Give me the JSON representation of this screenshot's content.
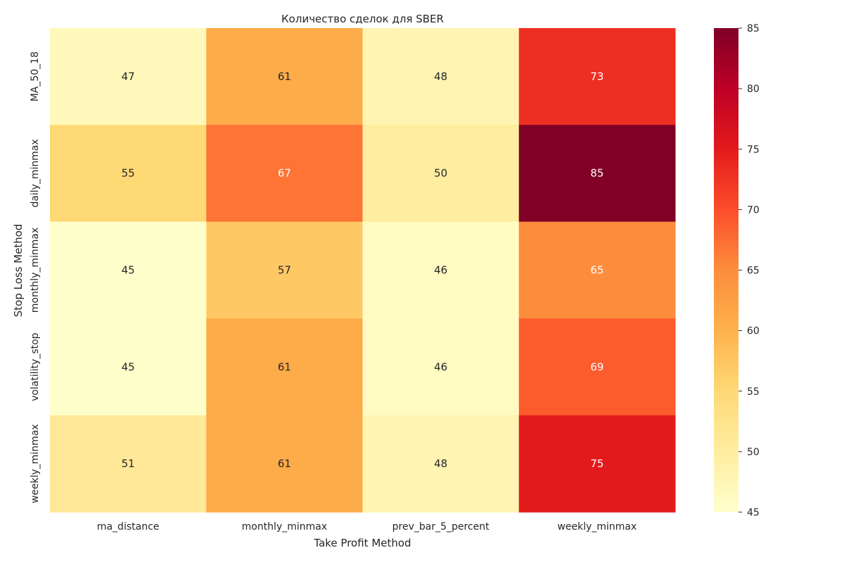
{
  "chart_data": {
    "type": "heatmap",
    "title": "Количество сделок для SBER",
    "xlabel": "Take Profit Method",
    "ylabel": "Stop Loss Method",
    "x_categories": [
      "ma_distance",
      "monthly_minmax",
      "prev_bar_5_percent",
      "weekly_minmax"
    ],
    "y_categories": [
      "MA_50_18",
      "daily_minmax",
      "monthly_minmax",
      "volatility_stop",
      "weekly_minmax"
    ],
    "values": [
      [
        47,
        61,
        48,
        73
      ],
      [
        55,
        67,
        50,
        85
      ],
      [
        45,
        57,
        46,
        65
      ],
      [
        45,
        61,
        46,
        69
      ],
      [
        51,
        61,
        48,
        75
      ]
    ],
    "colorbar": {
      "min": 45,
      "max": 85,
      "ticks": [
        45,
        50,
        55,
        60,
        65,
        70,
        75,
        80,
        85
      ],
      "colormap": "YlOrRd"
    },
    "grid": false
  }
}
